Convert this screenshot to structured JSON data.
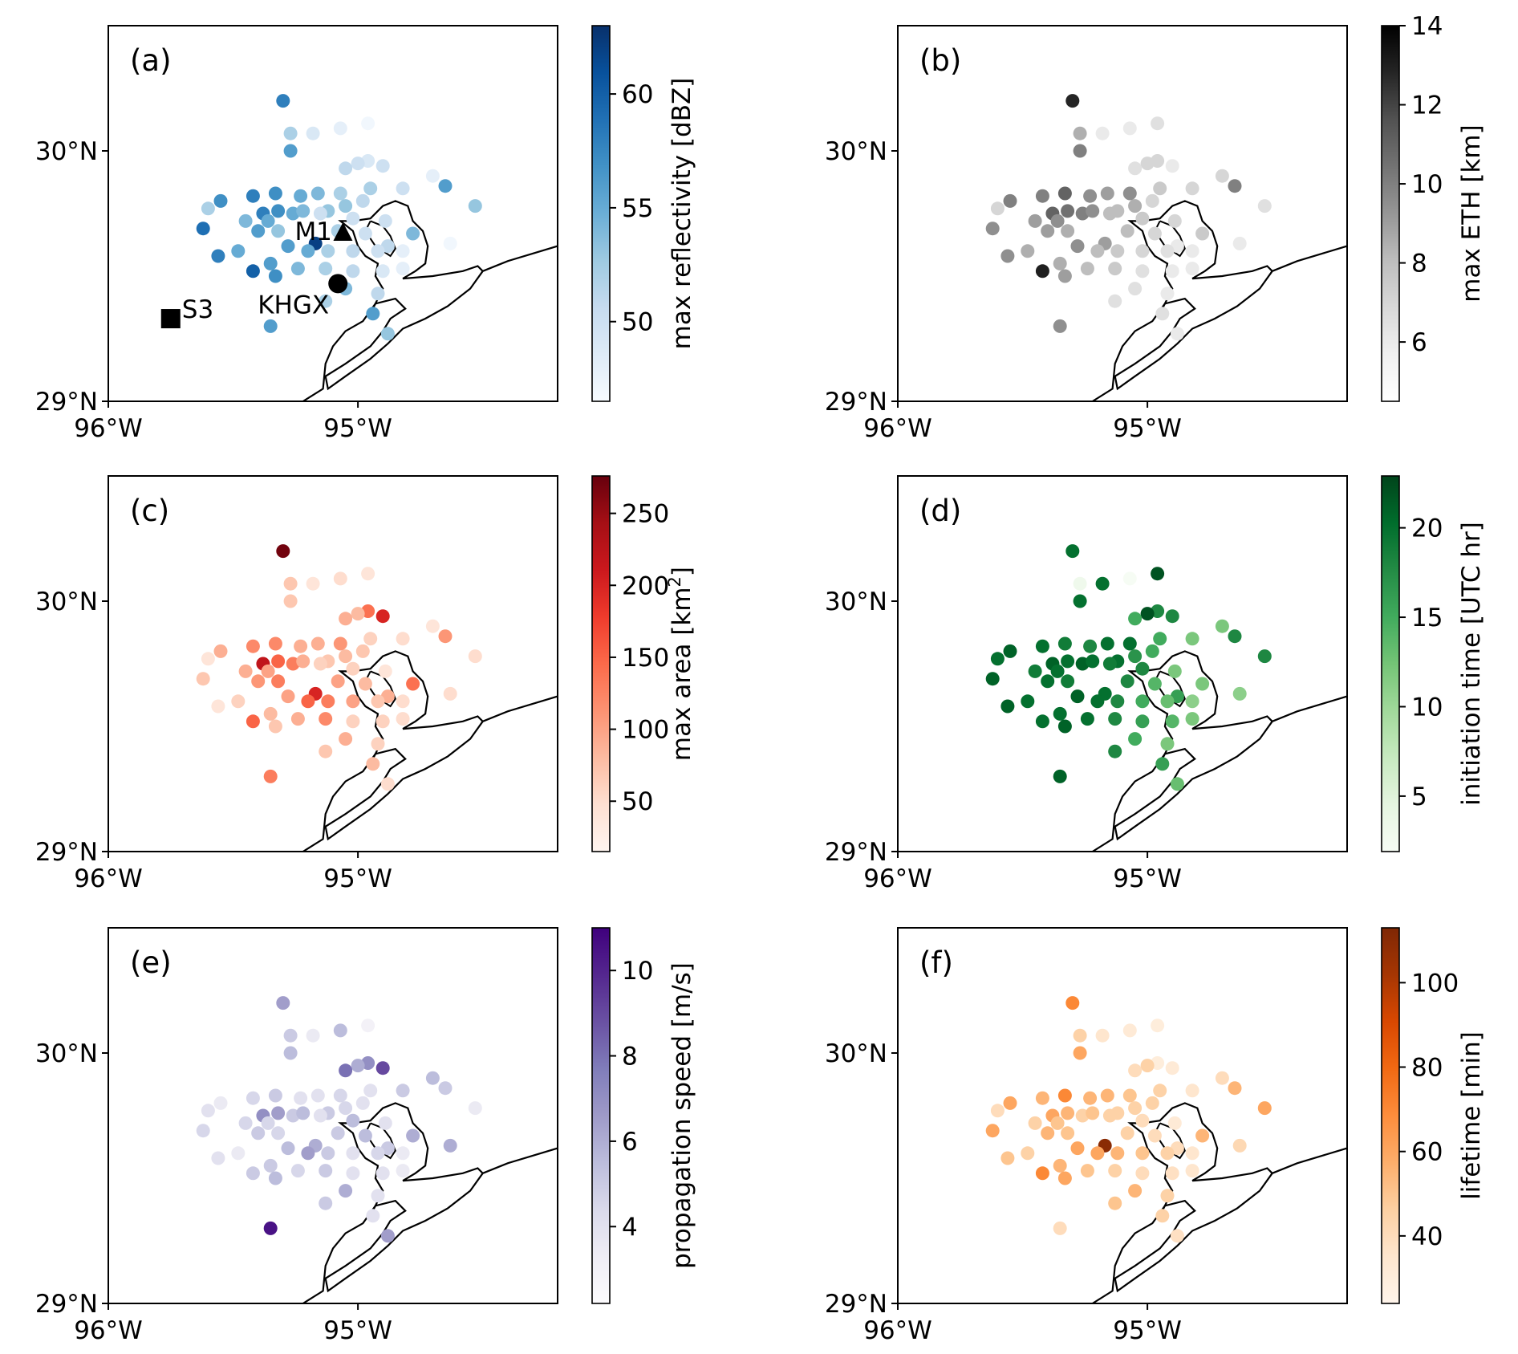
{
  "chart_data": [
    {
      "type": "scatter",
      "panel_label": "(a)",
      "colorbar_label": "max reflectivity [dBZ]",
      "colormap": "Blues",
      "colorbar_range": [
        46.5,
        63.0
      ],
      "colorbar_ticks": [
        "50",
        "55",
        "60"
      ],
      "colorbar_tick_values": [
        50,
        55,
        60
      ],
      "xlim": [
        -96.0,
        -94.2
      ],
      "ylim": [
        29.0,
        30.5
      ],
      "xticks": [
        "96°W",
        "95°W"
      ],
      "yticks": [
        "29°N",
        "30°N"
      ],
      "sites": [
        {
          "name": "M1",
          "lon": -95.06,
          "lat": 29.67,
          "marker": "triangle"
        },
        {
          "name": "KHGX",
          "lon": -95.08,
          "lat": 29.47,
          "marker": "circle"
        },
        {
          "name": "S3",
          "lon": -95.75,
          "lat": 29.33,
          "marker": "square"
        }
      ]
    },
    {
      "type": "scatter",
      "panel_label": "(b)",
      "colorbar_label": "max ETH [km]",
      "colormap": "Greys",
      "colorbar_range": [
        4.5,
        14.0
      ],
      "colorbar_ticks": [
        "6",
        "8",
        "10",
        "12",
        "14"
      ],
      "colorbar_tick_values": [
        6,
        8,
        10,
        12,
        14
      ],
      "xlim": [
        -96.0,
        -94.2
      ],
      "ylim": [
        29.0,
        30.5
      ],
      "xticks": [
        "96°W",
        "95°W"
      ],
      "yticks": [
        "29°N",
        "30°N"
      ]
    },
    {
      "type": "scatter",
      "panel_label": "(c)",
      "colorbar_label": "max area [km²]",
      "colormap": "Reds",
      "colorbar_range": [
        15,
        276
      ],
      "colorbar_ticks": [
        "50",
        "100",
        "150",
        "200",
        "250"
      ],
      "colorbar_tick_values": [
        50,
        100,
        150,
        200,
        250
      ],
      "xlim": [
        -96.0,
        -94.2
      ],
      "ylim": [
        29.0,
        30.5
      ],
      "xticks": [
        "96°W",
        "95°W"
      ],
      "yticks": [
        "29°N",
        "30°N"
      ]
    },
    {
      "type": "scatter",
      "panel_label": "(d)",
      "colorbar_label": "initiation time [UTC hr]",
      "colormap": "Greens",
      "colorbar_range": [
        1.9,
        22.9
      ],
      "colorbar_ticks": [
        "5",
        "10",
        "15",
        "20"
      ],
      "colorbar_tick_values": [
        5,
        10,
        15,
        20
      ],
      "xlim": [
        -96.0,
        -94.2
      ],
      "ylim": [
        29.0,
        30.5
      ],
      "xticks": [
        "96°W",
        "95°W"
      ],
      "yticks": [
        "29°N",
        "30°N"
      ]
    },
    {
      "type": "scatter",
      "panel_label": "(e)",
      "colorbar_label": "propagation speed [m/s]",
      "colormap": "Purples",
      "colorbar_range": [
        2.2,
        11.0
      ],
      "colorbar_ticks": [
        "4",
        "6",
        "8",
        "10"
      ],
      "colorbar_tick_values": [
        4,
        6,
        8,
        10
      ],
      "xlim": [
        -96.0,
        -94.2
      ],
      "ylim": [
        29.0,
        30.5
      ],
      "xticks": [
        "96°W",
        "95°W"
      ],
      "yticks": [
        "29°N",
        "30°N"
      ]
    },
    {
      "type": "scatter",
      "panel_label": "(f)",
      "colorbar_label": "lifetime [min]",
      "colormap": "Oranges",
      "colorbar_range": [
        24,
        113
      ],
      "colorbar_ticks": [
        "40",
        "60",
        "80",
        "100"
      ],
      "colorbar_tick_values": [
        40,
        60,
        80,
        100
      ],
      "xlim": [
        -96.0,
        -94.2
      ],
      "ylim": [
        29.0,
        30.5
      ],
      "xticks": [
        "96°W",
        "95°W"
      ],
      "yticks": [
        "29°N",
        "30°N"
      ]
    }
  ],
  "cells": [
    {
      "lon": -95.3,
      "lat": 30.2,
      "ref": 58,
      "eth": 12.8,
      "area": 270,
      "init": 20,
      "speed": 6.5,
      "life": 70
    },
    {
      "lon": -95.27,
      "lat": 30.07,
      "ref": 52,
      "eth": 8.5,
      "area": 70,
      "init": 3,
      "speed": 5.0,
      "life": 45
    },
    {
      "lon": -95.18,
      "lat": 30.07,
      "ref": 49,
      "eth": 6.0,
      "area": 40,
      "init": 20,
      "speed": 3.5,
      "life": 35
    },
    {
      "lon": -95.07,
      "lat": 30.09,
      "ref": 48,
      "eth": 6.0,
      "area": 50,
      "init": 2,
      "speed": 5.5,
      "life": 32
    },
    {
      "lon": -94.96,
      "lat": 30.11,
      "ref": 47,
      "eth": 6.5,
      "area": 40,
      "init": 22,
      "speed": 3.0,
      "life": 30
    },
    {
      "lon": -95.27,
      "lat": 30.0,
      "ref": 56,
      "eth": 10.0,
      "area": 70,
      "init": 20,
      "speed": 5.5,
      "life": 60
    },
    {
      "lon": -94.96,
      "lat": 29.96,
      "ref": 49,
      "eth": 7.0,
      "area": 140,
      "init": 18,
      "speed": 7.0,
      "life": 30
    },
    {
      "lon": -95.0,
      "lat": 29.95,
      "ref": 50,
      "eth": 7.0,
      "area": 80,
      "init": 22,
      "speed": 6.0,
      "life": 45
    },
    {
      "lon": -95.05,
      "lat": 29.93,
      "ref": 51,
      "eth": 6.5,
      "area": 90,
      "init": 15,
      "speed": 8.0,
      "life": 40
    },
    {
      "lon": -94.9,
      "lat": 29.94,
      "ref": 50,
      "eth": 6.0,
      "area": 200,
      "init": 18,
      "speed": 9.0,
      "life": 32
    },
    {
      "lon": -94.7,
      "lat": 29.9,
      "ref": 48,
      "eth": 7.0,
      "area": 40,
      "init": 12,
      "speed": 5.5,
      "life": 40
    },
    {
      "lon": -95.6,
      "lat": 29.77,
      "ref": 52,
      "eth": 7.0,
      "area": 40,
      "init": 20,
      "speed": 4.0,
      "life": 40
    },
    {
      "lon": -95.55,
      "lat": 29.8,
      "ref": 57,
      "eth": 10.0,
      "area": 90,
      "init": 21,
      "speed": 3.5,
      "life": 60
    },
    {
      "lon": -95.42,
      "lat": 29.82,
      "ref": 58,
      "eth": 10.0,
      "area": 120,
      "init": 20,
      "speed": 4.5,
      "life": 55
    },
    {
      "lon": -95.33,
      "lat": 29.83,
      "ref": 57,
      "eth": 11.0,
      "area": 120,
      "init": 19,
      "speed": 5.0,
      "life": 70
    },
    {
      "lon": -95.23,
      "lat": 29.82,
      "ref": 55,
      "eth": 9.5,
      "area": 90,
      "init": 18,
      "speed": 4.0,
      "life": 55
    },
    {
      "lon": -95.16,
      "lat": 29.83,
      "ref": 54,
      "eth": 9.0,
      "area": 90,
      "init": 20,
      "speed": 4.0,
      "life": 55
    },
    {
      "lon": -95.07,
      "lat": 29.83,
      "ref": 52,
      "eth": 9.5,
      "area": 110,
      "init": 20,
      "speed": 4.5,
      "life": 50
    },
    {
      "lon": -94.95,
      "lat": 29.85,
      "ref": 52,
      "eth": 7.5,
      "area": 60,
      "init": 15,
      "speed": 4.0,
      "life": 45
    },
    {
      "lon": -94.82,
      "lat": 29.85,
      "ref": 50,
      "eth": 7.0,
      "area": 50,
      "init": 12,
      "speed": 5.0,
      "life": 35
    },
    {
      "lon": -94.65,
      "lat": 29.86,
      "ref": 56,
      "eth": 10.0,
      "area": 110,
      "init": 18,
      "speed": 5.0,
      "life": 55
    },
    {
      "lon": -95.38,
      "lat": 29.75,
      "ref": 58,
      "eth": 11.0,
      "area": 220,
      "init": 21,
      "speed": 7.0,
      "life": 60
    },
    {
      "lon": -95.32,
      "lat": 29.76,
      "ref": 57,
      "eth": 10.5,
      "area": 150,
      "init": 20,
      "speed": 6.5,
      "life": 55
    },
    {
      "lon": -95.26,
      "lat": 29.75,
      "ref": 55,
      "eth": 10.0,
      "area": 130,
      "init": 21,
      "speed": 5.0,
      "life": 45
    },
    {
      "lon": -95.22,
      "lat": 29.76,
      "ref": 54,
      "eth": 9.5,
      "area": 90,
      "init": 20,
      "speed": 5.5,
      "life": 50
    },
    {
      "lon": -95.12,
      "lat": 29.76,
      "ref": 53,
      "eth": 8.0,
      "area": 70,
      "init": 20,
      "speed": 5.0,
      "life": 45
    },
    {
      "lon": -95.02,
      "lat": 29.73,
      "ref": 50,
      "eth": 7.5,
      "area": 60,
      "init": 18,
      "speed": 5.5,
      "life": 40
    },
    {
      "lon": -94.89,
      "lat": 29.72,
      "ref": 50,
      "eth": 7.0,
      "area": 40,
      "init": 12,
      "speed": 4.0,
      "life": 32
    },
    {
      "lon": -94.53,
      "lat": 29.78,
      "ref": 53,
      "eth": 6.5,
      "area": 50,
      "init": 18,
      "speed": 3.5,
      "life": 60
    },
    {
      "lon": -95.62,
      "lat": 29.69,
      "ref": 59,
      "eth": 9.5,
      "area": 70,
      "init": 21,
      "speed": 4.5,
      "life": 60
    },
    {
      "lon": -95.4,
      "lat": 29.68,
      "ref": 56,
      "eth": 9.0,
      "area": 110,
      "init": 20,
      "speed": 5.0,
      "life": 55
    },
    {
      "lon": -95.32,
      "lat": 29.68,
      "ref": 53,
      "eth": 8.5,
      "area": 130,
      "init": 19,
      "speed": 4.5,
      "life": 50
    },
    {
      "lon": -95.17,
      "lat": 29.63,
      "ref": 62,
      "eth": 9.0,
      "area": 200,
      "init": 20,
      "speed": 6.0,
      "life": 110
    },
    {
      "lon": -95.08,
      "lat": 29.68,
      "ref": 52,
      "eth": 8.0,
      "area": 100,
      "init": 18,
      "speed": 5.0,
      "life": 45
    },
    {
      "lon": -94.97,
      "lat": 29.67,
      "ref": 50,
      "eth": 7.0,
      "area": 80,
      "init": 14,
      "speed": 5.5,
      "life": 40
    },
    {
      "lon": -94.88,
      "lat": 29.62,
      "ref": 51,
      "eth": 6.0,
      "area": 90,
      "init": 16,
      "speed": 5.0,
      "life": 40
    },
    {
      "lon": -94.78,
      "lat": 29.67,
      "ref": 54,
      "eth": 7.5,
      "area": 140,
      "init": 12,
      "speed": 6.0,
      "life": 55
    },
    {
      "lon": -95.48,
      "lat": 29.6,
      "ref": 55,
      "eth": 8.5,
      "area": 60,
      "init": 20,
      "speed": 3.5,
      "life": 45
    },
    {
      "lon": -95.2,
      "lat": 29.6,
      "ref": 55,
      "eth": 8.0,
      "area": 150,
      "init": 20,
      "speed": 6.5,
      "life": 60
    },
    {
      "lon": -95.12,
      "lat": 29.6,
      "ref": 52,
      "eth": 7.5,
      "area": 130,
      "init": 18,
      "speed": 5.0,
      "life": 55
    },
    {
      "lon": -95.02,
      "lat": 29.6,
      "ref": 51,
      "eth": 7.0,
      "area": 100,
      "init": 15,
      "speed": 4.0,
      "life": 50
    },
    {
      "lon": -94.92,
      "lat": 29.6,
      "ref": 50,
      "eth": 6.5,
      "area": 70,
      "init": 13,
      "speed": 4.5,
      "life": 45
    },
    {
      "lon": -94.82,
      "lat": 29.6,
      "ref": 48,
      "eth": 6.0,
      "area": 50,
      "init": 11,
      "speed": 3.5,
      "life": 35
    },
    {
      "lon": -94.63,
      "lat": 29.63,
      "ref": 47,
      "eth": 6.0,
      "area": 50,
      "init": 11,
      "speed": 6.0,
      "life": 42
    },
    {
      "lon": -95.56,
      "lat": 29.58,
      "ref": 58,
      "eth": 9.5,
      "area": 40,
      "init": 21,
      "speed": 4.0,
      "life": 50
    },
    {
      "lon": -95.35,
      "lat": 29.55,
      "ref": 56,
      "eth": 8.5,
      "area": 80,
      "init": 20,
      "speed": 5.0,
      "life": 55
    },
    {
      "lon": -95.24,
      "lat": 29.53,
      "ref": 54,
      "eth": 8.0,
      "area": 90,
      "init": 20,
      "speed": 4.5,
      "life": 50
    },
    {
      "lon": -95.13,
      "lat": 29.53,
      "ref": 52,
      "eth": 7.5,
      "area": 120,
      "init": 18,
      "speed": 5.0,
      "life": 45
    },
    {
      "lon": -95.02,
      "lat": 29.52,
      "ref": 51,
      "eth": 6.5,
      "area": 60,
      "init": 16,
      "speed": 4.0,
      "life": 40
    },
    {
      "lon": -94.9,
      "lat": 29.52,
      "ref": 49,
      "eth": 6.0,
      "area": 60,
      "init": 14,
      "speed": 4.0,
      "life": 38
    },
    {
      "lon": -94.82,
      "lat": 29.53,
      "ref": 48,
      "eth": 6.0,
      "area": 50,
      "init": 12,
      "speed": 3.5,
      "life": 35
    },
    {
      "lon": -95.42,
      "lat": 29.52,
      "ref": 60,
      "eth": 13.0,
      "area": 150,
      "init": 20,
      "speed": 5.0,
      "life": 70
    },
    {
      "lon": -95.33,
      "lat": 29.5,
      "ref": 57,
      "eth": 9.0,
      "area": 70,
      "init": 21,
      "speed": 5.5,
      "life": 60
    },
    {
      "lon": -95.05,
      "lat": 29.45,
      "ref": 54,
      "eth": 6.5,
      "area": 90,
      "init": 15,
      "speed": 6.0,
      "life": 55
    },
    {
      "lon": -94.92,
      "lat": 29.43,
      "ref": 51,
      "eth": 6.0,
      "area": 60,
      "init": 12,
      "speed": 4.0,
      "life": 45
    },
    {
      "lon": -95.13,
      "lat": 29.4,
      "ref": 52,
      "eth": 6.5,
      "area": 70,
      "init": 18,
      "speed": 5.0,
      "life": 50
    },
    {
      "lon": -94.94,
      "lat": 29.35,
      "ref": 56,
      "eth": 6.5,
      "area": 80,
      "init": 16,
      "speed": 4.0,
      "life": 45
    },
    {
      "lon": -94.88,
      "lat": 29.27,
      "ref": 53,
      "eth": 6.0,
      "area": 50,
      "init": 13,
      "speed": 6.5,
      "life": 38
    },
    {
      "lon": -95.35,
      "lat": 29.3,
      "ref": 56,
      "eth": 9.5,
      "area": 130,
      "init": 21,
      "speed": 10.5,
      "life": 40
    },
    {
      "lon": -95.15,
      "lat": 29.75,
      "ref": 50,
      "eth": 8.0,
      "area": 60,
      "init": 19,
      "speed": 4.0,
      "life": 45
    },
    {
      "lon": -95.45,
      "lat": 29.72,
      "ref": 54,
      "eth": 9.0,
      "area": 90,
      "init": 19,
      "speed": 4.5,
      "life": 45
    },
    {
      "lon": -95.28,
      "lat": 29.62,
      "ref": 56,
      "eth": 9.5,
      "area": 100,
      "init": 21,
      "speed": 5.5,
      "life": 60
    },
    {
      "lon": -95.05,
      "lat": 29.78,
      "ref": 53,
      "eth": 8.5,
      "area": 80,
      "init": 17,
      "speed": 4.5,
      "life": 45
    },
    {
      "lon": -94.98,
      "lat": 29.8,
      "ref": 51,
      "eth": 7.0,
      "area": 70,
      "init": 15,
      "speed": 4.0,
      "life": 45
    },
    {
      "lon": -95.36,
      "lat": 29.72,
      "ref": 55,
      "eth": 9.5,
      "area": 100,
      "init": 20,
      "speed": 4.5,
      "life": 50
    }
  ]
}
